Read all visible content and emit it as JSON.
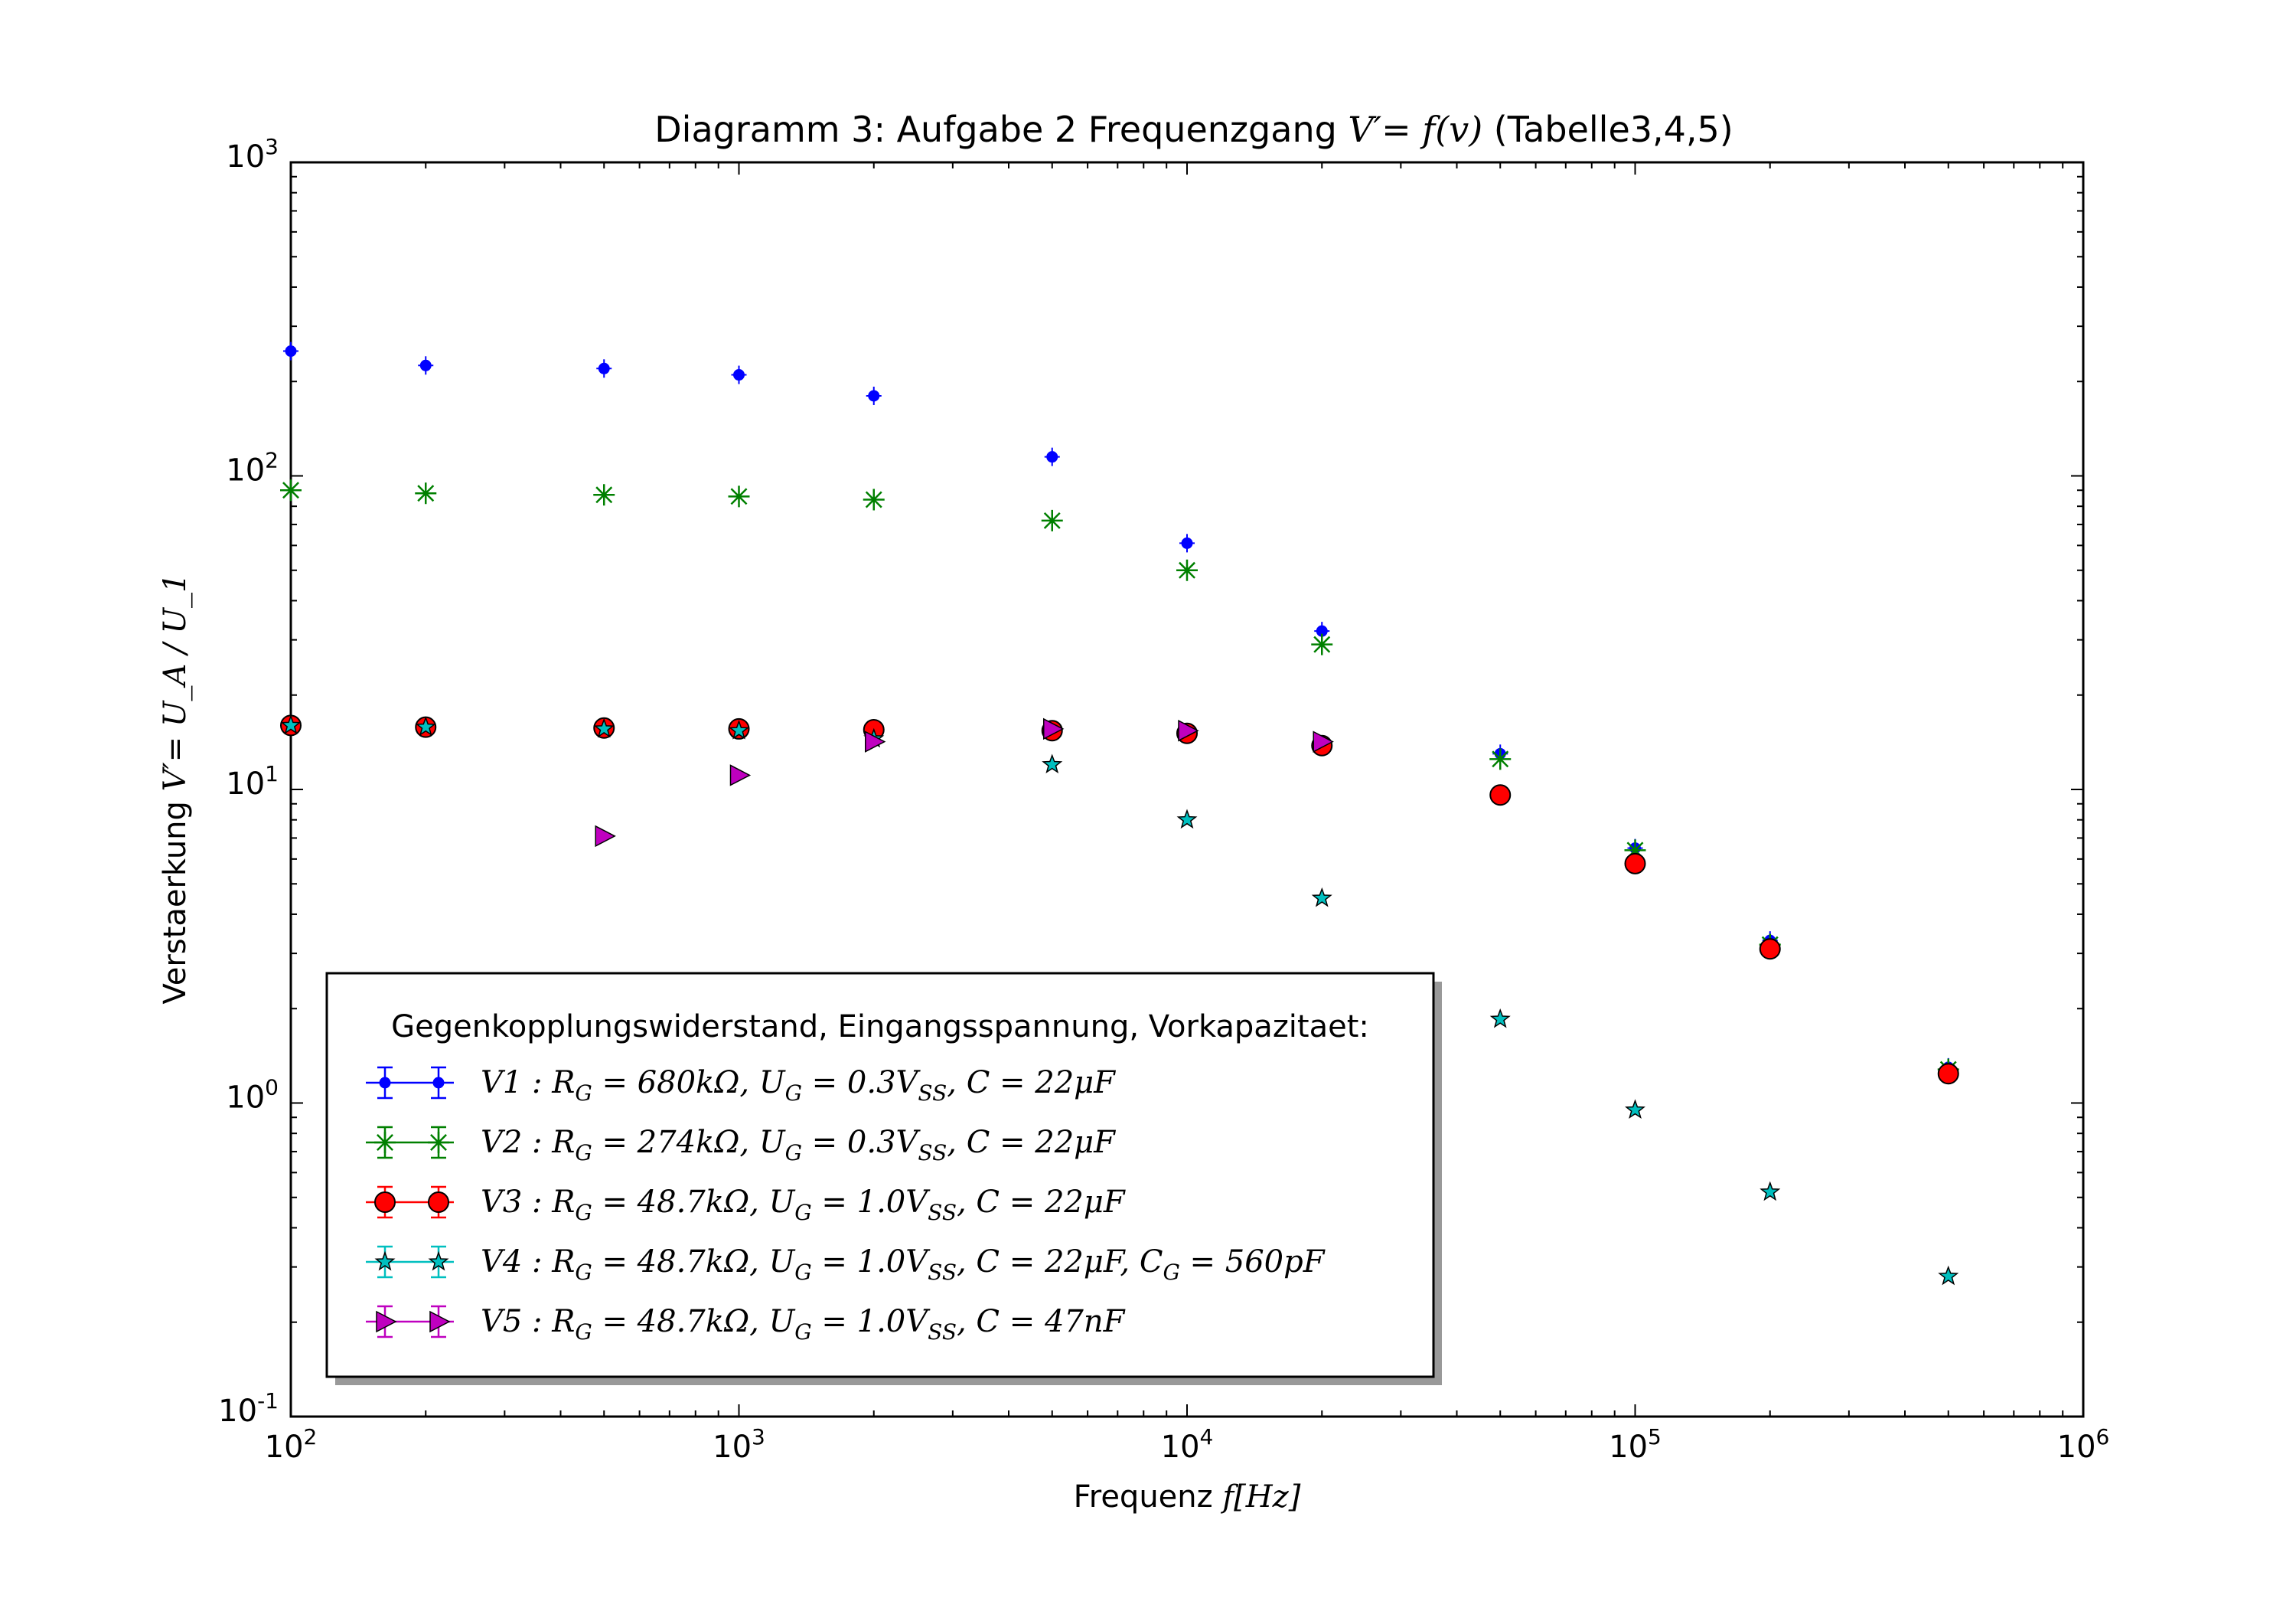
{
  "chart_data": {
    "type": "scatter",
    "title_prefix": "Diagramm 3: Aufgabe 2 Frequenzgang ",
    "title_math": "V′= f(v)",
    "title_suffix": " (Tabelle3,4,5)",
    "xlabel_prefix": "Frequenz ",
    "xlabel_math": "f[Hz]",
    "ylabel_prefix": "Verstaerkung ",
    "ylabel_math": "V′= U_A / U_1",
    "x_scale": "log",
    "y_scale": "log",
    "xlim": [
      100,
      1000000
    ],
    "ylim": [
      0.1,
      1000
    ],
    "x_ticks": [
      {
        "value": 100,
        "base": "10",
        "exp": "2"
      },
      {
        "value": 1000,
        "base": "10",
        "exp": "3"
      },
      {
        "value": 10000,
        "base": "10",
        "exp": "4"
      },
      {
        "value": 100000,
        "base": "10",
        "exp": "5"
      },
      {
        "value": 1000000,
        "base": "10",
        "exp": "6"
      }
    ],
    "y_ticks": [
      {
        "value": 0.1,
        "base": "10",
        "exp": "-1"
      },
      {
        "value": 1,
        "base": "10",
        "exp": "0"
      },
      {
        "value": 10,
        "base": "10",
        "exp": "1"
      },
      {
        "value": 100,
        "base": "10",
        "exp": "2"
      },
      {
        "value": 1000,
        "base": "10",
        "exp": "3"
      }
    ],
    "grid": false,
    "legend": {
      "placement": "lower-left",
      "title": "Gegenkopplungswiderstand, Eingangsspannung, Vorkapazitaet:"
    },
    "series": [
      {
        "name": "V1 : R_G = 680kΩ, U_G = 0.3V_SS, C = 22μF",
        "color": "#0000ff",
        "marker": "point",
        "x": [
          100,
          200,
          500,
          1000,
          2000,
          5000,
          10000,
          20000,
          50000,
          100000,
          200000,
          500000
        ],
        "y": [
          250,
          225,
          220,
          210,
          180,
          115,
          61,
          32,
          13,
          6.5,
          3.3,
          1.3
        ]
      },
      {
        "name": "V2 : R_G = 274kΩ, U_G = 0.3V_SS, C = 22μF",
        "color": "#008000",
        "marker": "star-asterisk",
        "x": [
          100,
          200,
          500,
          1000,
          2000,
          5000,
          10000,
          20000,
          50000,
          100000,
          200000,
          500000
        ],
        "y": [
          90,
          88,
          87,
          86,
          84,
          72,
          50,
          29,
          12.5,
          6.4,
          3.2,
          1.28
        ]
      },
      {
        "name": "V3 : R_G = 48.7kΩ, U_G = 1.0V_SS, C = 22μF",
        "color": "#ff0000",
        "marker": "circle",
        "x": [
          100,
          200,
          500,
          1000,
          2000,
          5000,
          10000,
          20000,
          50000,
          100000,
          200000,
          500000
        ],
        "y": [
          16,
          15.8,
          15.7,
          15.6,
          15.5,
          15.4,
          15.1,
          13.8,
          9.6,
          5.8,
          3.1,
          1.24
        ]
      },
      {
        "name": "V4 : R_G = 48.7kΩ, U_G = 1.0V_SS, C = 22μF, C_G = 560pF",
        "color": "#00bfbf",
        "marker": "star",
        "x": [
          100,
          200,
          500,
          1000,
          2000,
          5000,
          10000,
          20000,
          50000,
          100000,
          200000,
          500000
        ],
        "y": [
          16,
          15.8,
          15.6,
          15.4,
          14.5,
          12,
          8,
          4.5,
          1.85,
          0.95,
          0.52,
          0.28
        ]
      },
      {
        "name": "V5 : R_G = 48.7kΩ, U_G = 1.0V_SS, C = 47nF",
        "color": "#bf00bf",
        "marker": "triangle-right",
        "x": [
          500,
          1000,
          2000,
          5000,
          10000,
          20000
        ],
        "y": [
          7.1,
          11.1,
          14.2,
          15.6,
          15.4,
          14.2
        ]
      }
    ]
  }
}
